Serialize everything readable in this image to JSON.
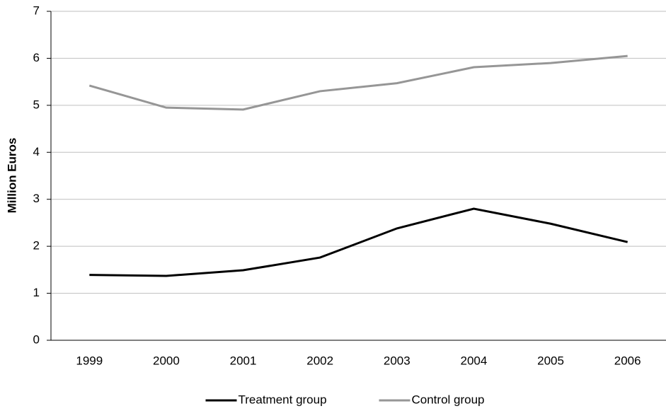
{
  "chart_data": {
    "type": "line",
    "y_label": "Million Euros",
    "categories": [
      "1999",
      "2000",
      "2001",
      "2002",
      "2003",
      "2004",
      "2005",
      "2006"
    ],
    "series": [
      {
        "name": "Treatment group",
        "color": "#000000",
        "values": [
          1.39,
          1.37,
          1.49,
          1.76,
          2.38,
          2.8,
          2.48,
          2.09
        ]
      },
      {
        "name": "Control group",
        "color": "#969696",
        "values": [
          5.42,
          4.95,
          4.91,
          5.3,
          5.47,
          5.81,
          5.9,
          6.05
        ]
      }
    ],
    "ylim": [
      0,
      7
    ],
    "yticks": [
      0,
      1,
      2,
      3,
      4,
      5,
      6,
      7
    ],
    "grid": true,
    "legend": "bottom"
  }
}
